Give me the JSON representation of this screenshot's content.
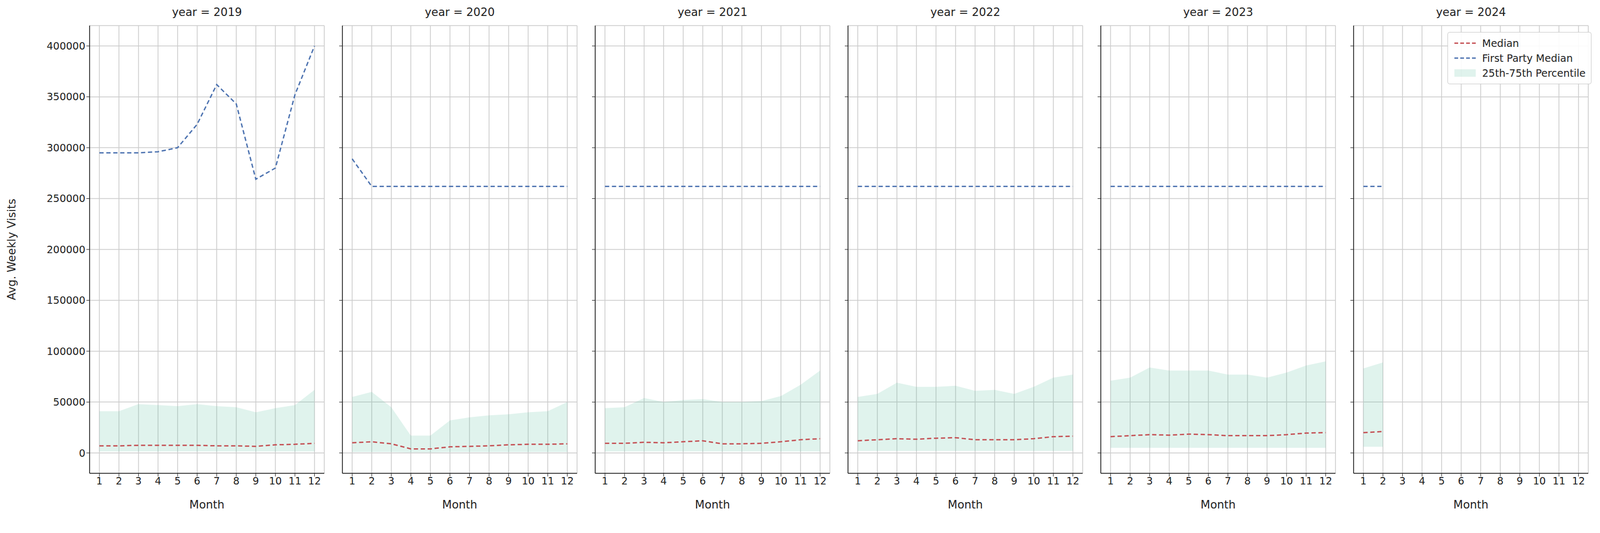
{
  "chart_data": [
    {
      "type": "line",
      "title": "year = 2019",
      "x_label": "Month",
      "y_label": "Avg. Weekly Visits",
      "x": [
        1,
        2,
        3,
        4,
        5,
        6,
        7,
        8,
        9,
        10,
        11,
        12
      ],
      "xlim": [
        0.5,
        12.5
      ],
      "xticks": [
        1,
        2,
        3,
        4,
        5,
        6,
        7,
        8,
        9,
        10,
        11,
        12
      ],
      "ylim": [
        -20000,
        420000
      ],
      "yticks": [
        0,
        50000,
        100000,
        150000,
        200000,
        250000,
        300000,
        350000,
        400000
      ],
      "grid": true,
      "series": [
        {
          "name": "25th-75th Percentile",
          "type": "area",
          "color": "#66c2a5",
          "low": [
            1500,
            1500,
            1500,
            1500,
            1500,
            1500,
            1500,
            1500,
            1500,
            1500,
            1500,
            1500
          ],
          "high": [
            41000,
            41000,
            48000,
            47000,
            46000,
            48000,
            46000,
            45000,
            40000,
            44000,
            47000,
            62000
          ]
        },
        {
          "name": "Median",
          "type": "line",
          "color": "#c44e52",
          "line_style": "dashed",
          "values": [
            7000,
            7000,
            7500,
            7500,
            7500,
            7500,
            7000,
            7000,
            6500,
            8000,
            8500,
            9500
          ]
        },
        {
          "name": "First Party Median",
          "type": "line",
          "color": "#4c72b0",
          "line_style": "dashed",
          "values": [
            295000,
            295000,
            295000,
            296000,
            300000,
            323000,
            362000,
            343000,
            269000,
            280000,
            352000,
            400000
          ]
        }
      ]
    },
    {
      "type": "line",
      "title": "year = 2020",
      "x_label": "Month",
      "x": [
        1,
        2,
        3,
        4,
        5,
        6,
        7,
        8,
        9,
        10,
        11,
        12
      ],
      "xlim": [
        0.5,
        12.5
      ],
      "xticks": [
        1,
        2,
        3,
        4,
        5,
        6,
        7,
        8,
        9,
        10,
        11,
        12
      ],
      "ylim": [
        -20000,
        420000
      ],
      "yticks": [
        0,
        50000,
        100000,
        150000,
        200000,
        250000,
        300000,
        350000,
        400000
      ],
      "grid": true,
      "tick_labels": "x",
      "series": [
        {
          "name": "25th-75th Percentile",
          "type": "area",
          "color": "#66c2a5",
          "low": [
            1000,
            1000,
            1000,
            500,
            500,
            1000,
            1000,
            1000,
            1000,
            1000,
            1000,
            1000
          ],
          "high": [
            55000,
            60000,
            45000,
            17000,
            17000,
            32000,
            35000,
            37000,
            38000,
            40000,
            41000,
            50000
          ]
        },
        {
          "name": "Median",
          "type": "line",
          "color": "#c44e52",
          "line_style": "dashed",
          "values": [
            10000,
            11000,
            9000,
            4000,
            4000,
            6000,
            6500,
            7000,
            8000,
            8500,
            8500,
            9000
          ]
        },
        {
          "name": "First Party Median",
          "type": "line",
          "color": "#4c72b0",
          "line_style": "dashed",
          "values": [
            289000,
            262000,
            262000,
            262000,
            262000,
            262000,
            262000,
            262000,
            262000,
            262000,
            262000,
            262000
          ]
        }
      ]
    },
    {
      "type": "line",
      "title": "year = 2021",
      "x_label": "Month",
      "x": [
        1,
        2,
        3,
        4,
        5,
        6,
        7,
        8,
        9,
        10,
        11,
        12
      ],
      "xlim": [
        0.5,
        12.5
      ],
      "xticks": [
        1,
        2,
        3,
        4,
        5,
        6,
        7,
        8,
        9,
        10,
        11,
        12
      ],
      "ylim": [
        -20000,
        420000
      ],
      "yticks": [
        0,
        50000,
        100000,
        150000,
        200000,
        250000,
        300000,
        350000,
        400000
      ],
      "grid": true,
      "tick_labels": "x",
      "series": [
        {
          "name": "25th-75th Percentile",
          "type": "area",
          "color": "#66c2a5",
          "low": [
            1500,
            1500,
            1500,
            1500,
            1500,
            1500,
            1500,
            1500,
            1500,
            1500,
            1500,
            1500
          ],
          "high": [
            44000,
            45000,
            54000,
            50000,
            52000,
            53000,
            50000,
            50000,
            51000,
            56000,
            67000,
            81000
          ]
        },
        {
          "name": "Median",
          "type": "line",
          "color": "#c44e52",
          "line_style": "dashed",
          "values": [
            9500,
            9500,
            10500,
            10000,
            11000,
            12000,
            9000,
            9000,
            9500,
            11000,
            13000,
            14000
          ]
        },
        {
          "name": "First Party Median",
          "type": "line",
          "color": "#4c72b0",
          "line_style": "dashed",
          "values": [
            262000,
            262000,
            262000,
            262000,
            262000,
            262000,
            262000,
            262000,
            262000,
            262000,
            262000,
            262000
          ]
        }
      ]
    },
    {
      "type": "line",
      "title": "year = 2022",
      "x_label": "Month",
      "x": [
        1,
        2,
        3,
        4,
        5,
        6,
        7,
        8,
        9,
        10,
        11,
        12
      ],
      "xlim": [
        0.5,
        12.5
      ],
      "xticks": [
        1,
        2,
        3,
        4,
        5,
        6,
        7,
        8,
        9,
        10,
        11,
        12
      ],
      "ylim": [
        -20000,
        420000
      ],
      "yticks": [
        0,
        50000,
        100000,
        150000,
        200000,
        250000,
        300000,
        350000,
        400000
      ],
      "grid": true,
      "tick_labels": "x",
      "series": [
        {
          "name": "25th-75th Percentile",
          "type": "area",
          "color": "#66c2a5",
          "low": [
            2000,
            2000,
            2000,
            2000,
            2000,
            2000,
            2000,
            2000,
            2000,
            2000,
            2000,
            2000
          ],
          "high": [
            55000,
            58000,
            69000,
            65000,
            65000,
            66000,
            61000,
            62000,
            58000,
            65000,
            74000,
            77000
          ]
        },
        {
          "name": "Median",
          "type": "line",
          "color": "#c44e52",
          "line_style": "dashed",
          "values": [
            12000,
            13000,
            14000,
            13500,
            14500,
            15000,
            13000,
            13000,
            13000,
            14000,
            16000,
            16500
          ]
        },
        {
          "name": "First Party Median",
          "type": "line",
          "color": "#4c72b0",
          "line_style": "dashed",
          "values": [
            262000,
            262000,
            262000,
            262000,
            262000,
            262000,
            262000,
            262000,
            262000,
            262000,
            262000,
            262000
          ]
        }
      ]
    },
    {
      "type": "line",
      "title": "year = 2023",
      "x_label": "Month",
      "x": [
        1,
        2,
        3,
        4,
        5,
        6,
        7,
        8,
        9,
        10,
        11,
        12
      ],
      "xlim": [
        0.5,
        12.5
      ],
      "xticks": [
        1,
        2,
        3,
        4,
        5,
        6,
        7,
        8,
        9,
        10,
        11,
        12
      ],
      "ylim": [
        -20000,
        420000
      ],
      "yticks": [
        0,
        50000,
        100000,
        150000,
        200000,
        250000,
        300000,
        350000,
        400000
      ],
      "grid": true,
      "tick_labels": "x",
      "series": [
        {
          "name": "25th-75th Percentile",
          "type": "area",
          "color": "#66c2a5",
          "low": [
            5000,
            5000,
            5000,
            5000,
            5000,
            5000,
            5000,
            5000,
            5000,
            5000,
            5000,
            5000
          ],
          "high": [
            71000,
            74000,
            84000,
            81000,
            81000,
            81000,
            77000,
            77000,
            74000,
            79000,
            86000,
            90000
          ]
        },
        {
          "name": "Median",
          "type": "line",
          "color": "#c44e52",
          "line_style": "dashed",
          "values": [
            16000,
            17000,
            18000,
            17500,
            18500,
            18000,
            17000,
            17000,
            17000,
            18000,
            19500,
            20000
          ]
        },
        {
          "name": "First Party Median",
          "type": "line",
          "color": "#4c72b0",
          "line_style": "dashed",
          "values": [
            262000,
            262000,
            262000,
            262000,
            262000,
            262000,
            262000,
            262000,
            262000,
            262000,
            262000,
            262000
          ]
        }
      ]
    },
    {
      "type": "line",
      "title": "year = 2024",
      "x_label": "Month",
      "x": [
        1,
        2
      ],
      "xlim": [
        0.5,
        12.5
      ],
      "xticks": [
        1,
        2,
        3,
        4,
        5,
        6,
        7,
        8,
        9,
        10,
        11,
        12
      ],
      "ylim": [
        -20000,
        420000
      ],
      "yticks": [
        0,
        50000,
        100000,
        150000,
        200000,
        250000,
        300000,
        350000,
        400000
      ],
      "grid": true,
      "tick_labels": "x",
      "legend": "upper right",
      "series": [
        {
          "name": "25th-75th Percentile",
          "type": "area",
          "color": "#66c2a5",
          "low": [
            6000,
            6000
          ],
          "high": [
            83000,
            89000
          ]
        },
        {
          "name": "Median",
          "type": "line",
          "color": "#c44e52",
          "line_style": "dashed",
          "values": [
            20000,
            21000
          ]
        },
        {
          "name": "First Party Median",
          "type": "line",
          "color": "#4c72b0",
          "line_style": "dashed",
          "values": [
            262000,
            262000
          ]
        }
      ]
    }
  ]
}
